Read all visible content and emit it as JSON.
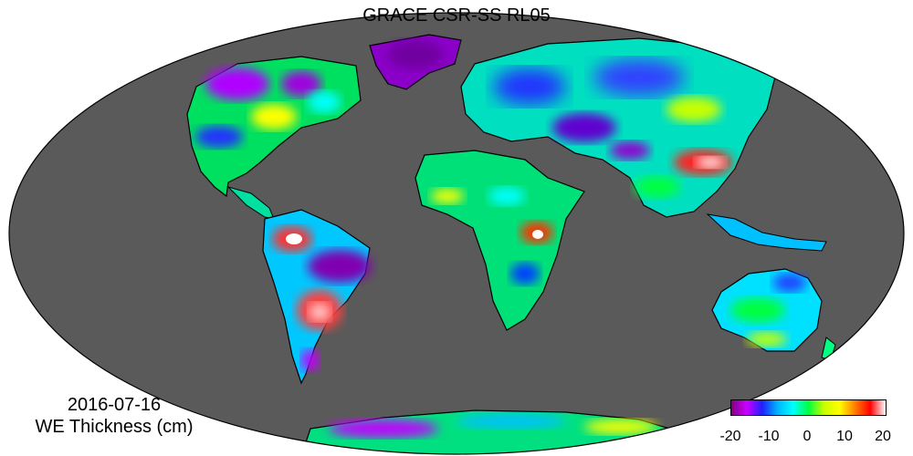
{
  "title": "GRACE CSR-SS RL05",
  "date": "2016-07-16",
  "units_label": "WE Thickness (cm)",
  "colorbar": {
    "ticks": [
      "-20",
      "-10",
      "0",
      "10",
      "20"
    ],
    "min": -20,
    "max": 20,
    "colors": [
      "#800080",
      "#cc00ff",
      "#2020ff",
      "#00b4ff",
      "#00ffff",
      "#00ff40",
      "#c8ff00",
      "#ffff00",
      "#ff8000",
      "#ff0000",
      "#ffffff"
    ]
  },
  "colors": {
    "ocean": "#5a5a5a",
    "background": "#ffffff",
    "coastline": "#000000"
  },
  "map": {
    "projection": "Mollweide",
    "variable": "Water-equivalent thickness anomaly"
  }
}
